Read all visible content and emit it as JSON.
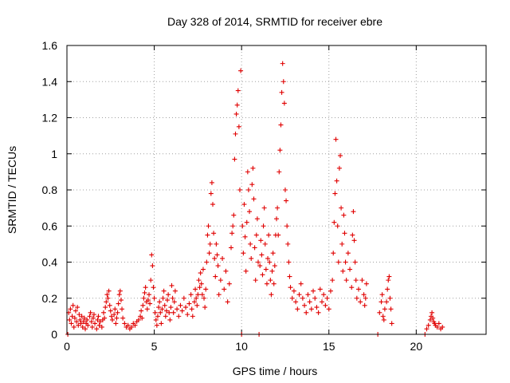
{
  "chart_data": {
    "type": "scatter",
    "title": "Day 328 of 2014, SRMTID for receiver ebre",
    "xlabel": "GPS time / hours",
    "ylabel": "SRMTID / TECUs",
    "xlim": [
      0,
      24
    ],
    "ylim": [
      0,
      1.6
    ],
    "xticks": [
      0,
      5,
      10,
      15,
      20
    ],
    "xtick_labels": [
      "0",
      "5",
      "10",
      "15",
      "20"
    ],
    "yticks": [
      0,
      0.2,
      0.4,
      0.6,
      0.8,
      1,
      1.2,
      1.4,
      1.6
    ],
    "ytick_labels": [
      "0",
      "0.2",
      "0.4",
      "0.6",
      "0.8",
      "1",
      "1.2",
      "1.4",
      "1.6"
    ],
    "grid": true,
    "marker": "+",
    "marker_color": "#e00000",
    "series": [
      {
        "name": "SRMTID",
        "points": [
          [
            0.05,
            0.0
          ],
          [
            0.1,
            0.12
          ],
          [
            0.15,
            0.08
          ],
          [
            0.2,
            0.14
          ],
          [
            0.25,
            0.06
          ],
          [
            0.3,
            0.1
          ],
          [
            0.35,
            0.16
          ],
          [
            0.4,
            0.04
          ],
          [
            0.45,
            0.09
          ],
          [
            0.5,
            0.13
          ],
          [
            0.55,
            0.07
          ],
          [
            0.6,
            0.15
          ],
          [
            0.65,
            0.05
          ],
          [
            0.7,
            0.11
          ],
          [
            0.75,
            0.08
          ],
          [
            0.8,
            0.06
          ],
          [
            0.85,
            0.1
          ],
          [
            0.9,
            0.04
          ],
          [
            0.95,
            0.07
          ],
          [
            1.0,
            0.09
          ],
          [
            1.05,
            0.03
          ],
          [
            1.1,
            0.06
          ],
          [
            1.15,
            0.08
          ],
          [
            1.2,
            0.05
          ],
          [
            1.3,
            0.1
          ],
          [
            1.35,
            0.12
          ],
          [
            1.4,
            0.07
          ],
          [
            1.45,
            0.04
          ],
          [
            1.5,
            0.09
          ],
          [
            1.55,
            0.11
          ],
          [
            1.6,
            0.06
          ],
          [
            1.7,
            0.03
          ],
          [
            1.75,
            0.08
          ],
          [
            1.8,
            0.1
          ],
          [
            1.85,
            0.05
          ],
          [
            1.9,
            0.07
          ],
          [
            2.0,
            0.04
          ],
          [
            2.05,
            0.08
          ],
          [
            2.1,
            0.12
          ],
          [
            2.15,
            0.09
          ],
          [
            2.2,
            0.15
          ],
          [
            2.25,
            0.18
          ],
          [
            2.3,
            0.22
          ],
          [
            2.35,
            0.2
          ],
          [
            2.4,
            0.24
          ],
          [
            2.45,
            0.16
          ],
          [
            2.5,
            0.13
          ],
          [
            2.55,
            0.1
          ],
          [
            2.6,
            0.08
          ],
          [
            2.7,
            0.11
          ],
          [
            2.75,
            0.14
          ],
          [
            2.8,
            0.06
          ],
          [
            2.85,
            0.09
          ],
          [
            2.9,
            0.12
          ],
          [
            2.95,
            0.17
          ],
          [
            3.0,
            0.22
          ],
          [
            3.05,
            0.24
          ],
          [
            3.1,
            0.19
          ],
          [
            3.15,
            0.14
          ],
          [
            3.2,
            0.09
          ],
          [
            3.3,
            0.06
          ],
          [
            3.4,
            0.04
          ],
          [
            3.5,
            0.05
          ],
          [
            3.6,
            0.03
          ],
          [
            3.7,
            0.04
          ],
          [
            3.8,
            0.06
          ],
          [
            3.9,
            0.05
          ],
          [
            4.0,
            0.07
          ],
          [
            4.1,
            0.08
          ],
          [
            4.2,
            0.1
          ],
          [
            4.25,
            0.13
          ],
          [
            4.3,
            0.09
          ],
          [
            4.35,
            0.16
          ],
          [
            4.4,
            0.2
          ],
          [
            4.45,
            0.23
          ],
          [
            4.5,
            0.26
          ],
          [
            4.55,
            0.18
          ],
          [
            4.6,
            0.14
          ],
          [
            4.65,
            0.19
          ],
          [
            4.7,
            0.22
          ],
          [
            4.75,
            0.17
          ],
          [
            4.8,
            0.3
          ],
          [
            4.85,
            0.44
          ],
          [
            4.9,
            0.38
          ],
          [
            4.95,
            0.26
          ],
          [
            5.0,
            0.2
          ],
          [
            5.05,
            0.12
          ],
          [
            5.1,
            0.08
          ],
          [
            5.15,
            0.05
          ],
          [
            5.2,
            0.1
          ],
          [
            5.25,
            0.15
          ],
          [
            5.3,
            0.18
          ],
          [
            5.35,
            0.12
          ],
          [
            5.4,
            0.06
          ],
          [
            5.45,
            0.14
          ],
          [
            5.5,
            0.2
          ],
          [
            5.55,
            0.24
          ],
          [
            5.6,
            0.16
          ],
          [
            5.65,
            0.1
          ],
          [
            5.7,
            0.13
          ],
          [
            5.75,
            0.19
          ],
          [
            5.8,
            0.22
          ],
          [
            5.85,
            0.12
          ],
          [
            5.9,
            0.08
          ],
          [
            5.95,
            0.15
          ],
          [
            6.0,
            0.27
          ],
          [
            6.05,
            0.2
          ],
          [
            6.1,
            0.12
          ],
          [
            6.15,
            0.18
          ],
          [
            6.2,
            0.24
          ],
          [
            6.3,
            0.14
          ],
          [
            6.4,
            0.1
          ],
          [
            6.5,
            0.16
          ],
          [
            6.6,
            0.13
          ],
          [
            6.7,
            0.2
          ],
          [
            6.8,
            0.15
          ],
          [
            6.9,
            0.11
          ],
          [
            7.0,
            0.17
          ],
          [
            7.1,
            0.22
          ],
          [
            7.15,
            0.14
          ],
          [
            7.2,
            0.1
          ],
          [
            7.3,
            0.18
          ],
          [
            7.35,
            0.25
          ],
          [
            7.4,
            0.2
          ],
          [
            7.45,
            0.16
          ],
          [
            7.5,
            0.22
          ],
          [
            7.55,
            0.3
          ],
          [
            7.6,
            0.26
          ],
          [
            7.65,
            0.34
          ],
          [
            7.7,
            0.28
          ],
          [
            7.75,
            0.22
          ],
          [
            7.8,
            0.36
          ],
          [
            7.85,
            0.2
          ],
          [
            7.9,
            0.15
          ],
          [
            7.95,
            0.25
          ],
          [
            8.0,
            0.4
          ],
          [
            8.05,
            0.55
          ],
          [
            8.1,
            0.6
          ],
          [
            8.15,
            0.45
          ],
          [
            8.2,
            0.5
          ],
          [
            8.25,
            0.78
          ],
          [
            8.3,
            0.84
          ],
          [
            8.35,
            0.72
          ],
          [
            8.4,
            0.56
          ],
          [
            8.45,
            0.42
          ],
          [
            8.5,
            0.32
          ],
          [
            8.55,
            0.5
          ],
          [
            8.6,
            0.44
          ],
          [
            8.65,
            0.38
          ],
          [
            8.7,
            0.22
          ],
          [
            8.8,
            0.3
          ],
          [
            8.9,
            0.42
          ],
          [
            9.0,
            0.25
          ],
          [
            9.1,
            0.35
          ],
          [
            9.2,
            0.18
          ],
          [
            9.3,
            0.28
          ],
          [
            9.4,
            0.48
          ],
          [
            9.45,
            0.56
          ],
          [
            9.5,
            0.6
          ],
          [
            9.55,
            0.66
          ],
          [
            9.6,
            0.97
          ],
          [
            9.65,
            1.11
          ],
          [
            9.7,
            1.22
          ],
          [
            9.75,
            1.27
          ],
          [
            9.8,
            1.35
          ],
          [
            9.85,
            1.15
          ],
          [
            9.9,
            0.8
          ],
          [
            9.95,
            1.46
          ],
          [
            10.0,
            0.0
          ],
          [
            10.05,
            0.6
          ],
          [
            10.1,
            0.45
          ],
          [
            10.15,
            0.72
          ],
          [
            10.2,
            0.54
          ],
          [
            10.25,
            0.35
          ],
          [
            10.3,
            0.62
          ],
          [
            10.35,
            0.9
          ],
          [
            10.4,
            0.8
          ],
          [
            10.45,
            0.68
          ],
          [
            10.5,
            0.5
          ],
          [
            10.55,
            0.42
          ],
          [
            10.6,
            0.83
          ],
          [
            10.65,
            0.92
          ],
          [
            10.7,
            0.75
          ],
          [
            10.75,
            0.48
          ],
          [
            10.8,
            0.3
          ],
          [
            10.85,
            0.55
          ],
          [
            10.9,
            0.64
          ],
          [
            10.95,
            0.4
          ],
          [
            11.0,
            0.0
          ],
          [
            11.05,
            0.38
          ],
          [
            11.1,
            0.52
          ],
          [
            11.15,
            0.44
          ],
          [
            11.2,
            0.33
          ],
          [
            11.25,
            0.6
          ],
          [
            11.3,
            0.7
          ],
          [
            11.35,
            0.5
          ],
          [
            11.4,
            0.36
          ],
          [
            11.45,
            0.28
          ],
          [
            11.5,
            0.42
          ],
          [
            11.55,
            0.55
          ],
          [
            11.6,
            0.4
          ],
          [
            11.65,
            0.3
          ],
          [
            11.7,
            0.22
          ],
          [
            11.75,
            0.35
          ],
          [
            11.8,
            0.45
          ],
          [
            11.85,
            0.28
          ],
          [
            11.9,
            0.38
          ],
          [
            11.95,
            0.55
          ],
          [
            12.0,
            0.64
          ],
          [
            12.05,
            0.7
          ],
          [
            12.1,
            0.55
          ],
          [
            12.15,
            0.9
          ],
          [
            12.2,
            1.02
          ],
          [
            12.25,
            1.16
          ],
          [
            12.3,
            1.34
          ],
          [
            12.35,
            1.5
          ],
          [
            12.4,
            1.4
          ],
          [
            12.45,
            1.28
          ],
          [
            12.5,
            0.8
          ],
          [
            12.55,
            0.74
          ],
          [
            12.6,
            0.6
          ],
          [
            12.65,
            0.5
          ],
          [
            12.7,
            0.4
          ],
          [
            12.75,
            0.32
          ],
          [
            12.8,
            0.26
          ],
          [
            12.9,
            0.2
          ],
          [
            13.0,
            0.24
          ],
          [
            13.1,
            0.18
          ],
          [
            13.2,
            0.14
          ],
          [
            13.3,
            0.22
          ],
          [
            13.4,
            0.28
          ],
          [
            13.5,
            0.2
          ],
          [
            13.6,
            0.16
          ],
          [
            13.7,
            0.12
          ],
          [
            13.8,
            0.22
          ],
          [
            13.9,
            0.18
          ],
          [
            14.0,
            0.14
          ],
          [
            14.1,
            0.24
          ],
          [
            14.2,
            0.2
          ],
          [
            14.3,
            0.15
          ],
          [
            14.4,
            0.12
          ],
          [
            14.5,
            0.25
          ],
          [
            14.6,
            0.18
          ],
          [
            14.7,
            0.22
          ],
          [
            14.8,
            0.16
          ],
          [
            14.9,
            0.2
          ],
          [
            15.0,
            0.14
          ],
          [
            15.1,
            0.24
          ],
          [
            15.2,
            0.3
          ],
          [
            15.25,
            0.45
          ],
          [
            15.3,
            0.62
          ],
          [
            15.35,
            0.78
          ],
          [
            15.4,
            1.08
          ],
          [
            15.45,
            0.85
          ],
          [
            15.5,
            0.6
          ],
          [
            15.55,
            0.4
          ],
          [
            15.6,
            0.92
          ],
          [
            15.65,
            0.99
          ],
          [
            15.7,
            0.7
          ],
          [
            15.75,
            0.5
          ],
          [
            15.8,
            0.35
          ],
          [
            15.85,
            0.66
          ],
          [
            15.9,
            0.56
          ],
          [
            15.95,
            0.4
          ],
          [
            16.0,
            0.3
          ],
          [
            16.1,
            0.45
          ],
          [
            16.2,
            0.36
          ],
          [
            16.3,
            0.26
          ],
          [
            16.35,
            0.55
          ],
          [
            16.4,
            0.68
          ],
          [
            16.45,
            0.52
          ],
          [
            16.5,
            0.4
          ],
          [
            16.55,
            0.3
          ],
          [
            16.6,
            0.2
          ],
          [
            16.7,
            0.25
          ],
          [
            16.8,
            0.18
          ],
          [
            16.9,
            0.3
          ],
          [
            17.0,
            0.22
          ],
          [
            17.05,
            0.16
          ],
          [
            17.1,
            0.2
          ],
          [
            17.15,
            0.28
          ],
          [
            17.8,
            0.0
          ],
          [
            17.9,
            0.12
          ],
          [
            18.0,
            0.18
          ],
          [
            18.05,
            0.22
          ],
          [
            18.1,
            0.1
          ],
          [
            18.15,
            0.08
          ],
          [
            18.2,
            0.14
          ],
          [
            18.3,
            0.18
          ],
          [
            18.35,
            0.25
          ],
          [
            18.4,
            0.3
          ],
          [
            18.45,
            0.32
          ],
          [
            18.5,
            0.2
          ],
          [
            18.55,
            0.14
          ],
          [
            18.6,
            0.06
          ],
          [
            20.5,
            0.0
          ],
          [
            20.6,
            0.03
          ],
          [
            20.7,
            0.05
          ],
          [
            20.8,
            0.08
          ],
          [
            20.85,
            0.1
          ],
          [
            20.9,
            0.12
          ],
          [
            20.95,
            0.09
          ],
          [
            21.0,
            0.07
          ],
          [
            21.05,
            0.06
          ],
          [
            21.1,
            0.05
          ],
          [
            21.2,
            0.04
          ],
          [
            21.3,
            0.06
          ],
          [
            21.4,
            0.03
          ],
          [
            21.5,
            0.04
          ]
        ]
      }
    ]
  }
}
